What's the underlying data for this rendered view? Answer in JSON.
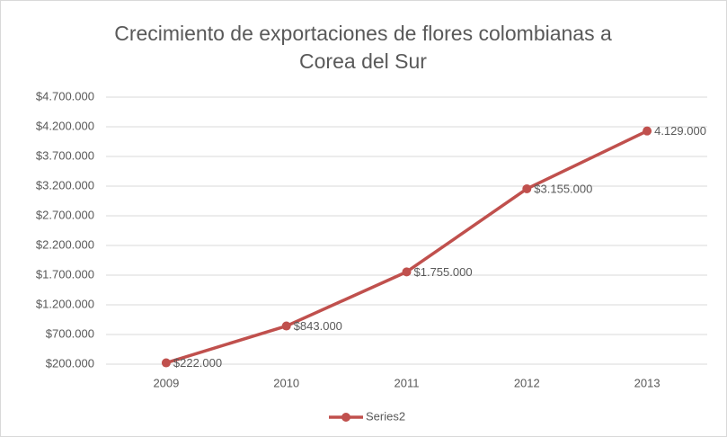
{
  "chart_data": {
    "type": "line",
    "title": "Crecimiento de exportaciones de flores colombianas a Corea del Sur",
    "categories": [
      "2009",
      "2010",
      "2011",
      "2012",
      "2013"
    ],
    "series": [
      {
        "name": "Series2",
        "color": "#c0504d",
        "values": [
          222000,
          843000,
          1755000,
          3155000,
          4129000
        ],
        "value_labels": [
          "$222.000",
          "$843.000",
          "$1.755.000",
          "$3.155.000",
          "4.129.000"
        ]
      }
    ],
    "ylim": [
      200000,
      4700000
    ],
    "yticks": [
      {
        "value": 200000,
        "label": "$200.000"
      },
      {
        "value": 700000,
        "label": "$700.000"
      },
      {
        "value": 1200000,
        "label": "$1.200.000"
      },
      {
        "value": 1700000,
        "label": "$1.700.000"
      },
      {
        "value": 2200000,
        "label": "$2.200.000"
      },
      {
        "value": 2700000,
        "label": "$2.700.000"
      },
      {
        "value": 3200000,
        "label": "$3.200.000"
      },
      {
        "value": 3700000,
        "label": "$3.700.000"
      },
      {
        "value": 4200000,
        "label": "$4.200.000"
      },
      {
        "value": 4700000,
        "label": "$4.700.000"
      }
    ],
    "grid": true,
    "legend": "bottom"
  }
}
